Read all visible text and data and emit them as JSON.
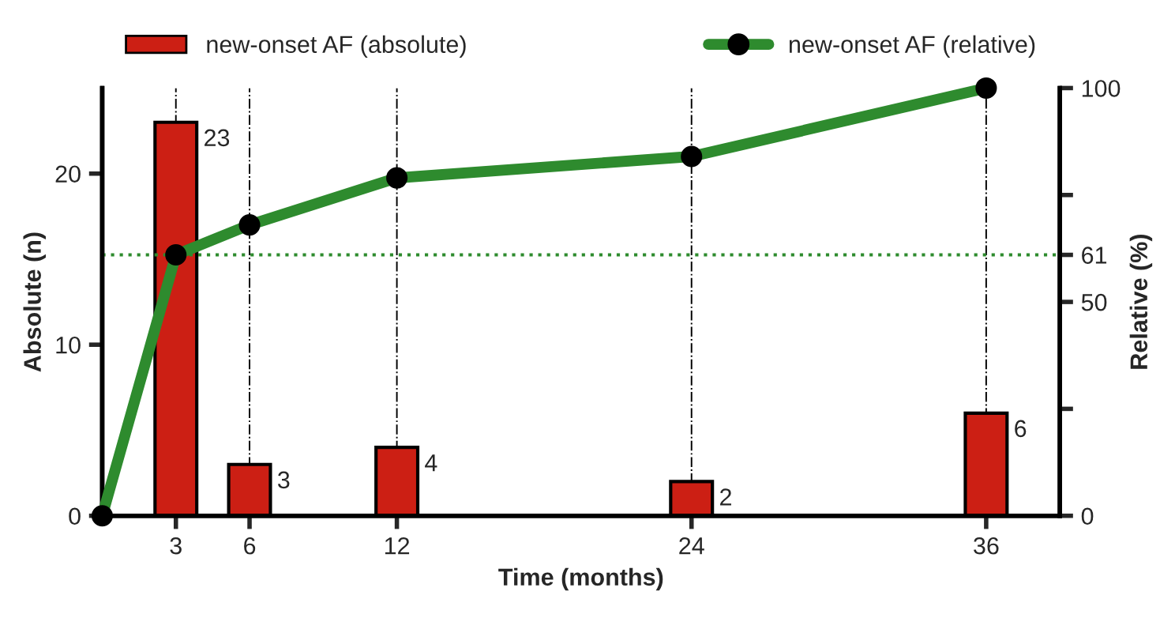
{
  "chart_data": {
    "type": "bar",
    "xlabel": "Time (months)",
    "ylabel": "Absolute (n)",
    "y2label": "Relative (%)",
    "xlim": [
      0,
      39
    ],
    "xticks": [
      3,
      6,
      12,
      24,
      36
    ],
    "ylim": [
      0,
      25
    ],
    "yticks": [
      0,
      10,
      20
    ],
    "y2lim": [
      0,
      100
    ],
    "y2ticks": [
      0,
      {
        "value": 25,
        "label": null
      },
      50,
      61,
      {
        "value": 75,
        "label": null
      },
      100
    ],
    "grid": "x",
    "legend": "top",
    "marker": "circle",
    "ref_lines": [
      {
        "axis": "y2",
        "value": 61,
        "color": "#2e8b2e",
        "line_style": "dotted"
      }
    ],
    "series": [
      {
        "name": "new-onset AF (absolute)",
        "color": "#cc1f14",
        "x": [
          3,
          6,
          12,
          24,
          36
        ],
        "values": [
          23,
          3,
          4,
          2,
          6
        ],
        "value_labels": [
          "23",
          "3",
          "4",
          "2",
          "6"
        ]
      },
      {
        "name": "new-onset AF (relative)",
        "type": "line",
        "axis": "y2",
        "color": "#2e8b2e",
        "x": [
          0,
          3,
          6,
          12,
          24,
          36
        ],
        "values": [
          0,
          61,
          68,
          79,
          84,
          100
        ]
      }
    ]
  }
}
